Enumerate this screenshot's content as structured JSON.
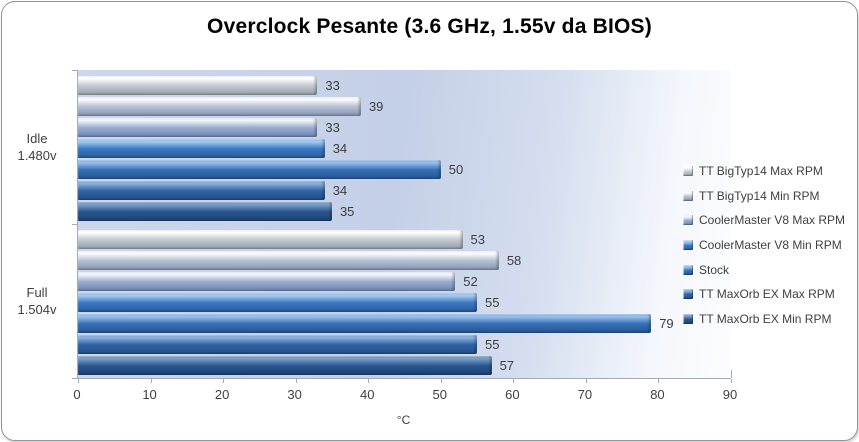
{
  "title": "Overclock Pesante (3.6 GHz, 1.55v da BIOS)",
  "chart_data": {
    "type": "bar",
    "orientation": "horizontal",
    "title": "Overclock Pesante (3.6 GHz, 1.55v da BIOS)",
    "xlabel": "°C",
    "xlim": [
      0,
      90
    ],
    "xticks": [
      0,
      10,
      20,
      30,
      40,
      50,
      60,
      70,
      80,
      90
    ],
    "grid": false,
    "data_labels": true,
    "legend_position": "right",
    "categories": [
      {
        "label_line1": "Idle",
        "label_line2": "1.480v"
      },
      {
        "label_line1": "Full",
        "label_line2": "1.504v"
      }
    ],
    "series": [
      {
        "name": "TT BigTyp14 Max RPM",
        "values": [
          33,
          53
        ],
        "colors": {
          "hi": "#ffffff",
          "light": "#eef0f3",
          "base": "#c3c8d0",
          "dark": "#979fab"
        }
      },
      {
        "name": "TT BigTyp14 Min RPM",
        "values": [
          39,
          58
        ],
        "colors": {
          "hi": "#fdfdfe",
          "light": "#e8ecf2",
          "base": "#b3bfd2",
          "dark": "#8495b1"
        }
      },
      {
        "name": "CoolerMaster V8 Max RPM",
        "values": [
          33,
          52
        ],
        "colors": {
          "hi": "#f2f6fb",
          "light": "#dce5f2",
          "base": "#97abce",
          "dark": "#6d87b3"
        }
      },
      {
        "name": "CoolerMaster V8 Min RPM",
        "values": [
          34,
          55
        ],
        "colors": {
          "hi": "#a8cbf0",
          "light": "#7aade6",
          "base": "#3a77c2",
          "dark": "#2a5c9e"
        }
      },
      {
        "name": "Stock",
        "values": [
          50,
          79
        ],
        "colors": {
          "hi": "#9cc2ec",
          "light": "#6fa4e0",
          "base": "#3670b6",
          "dark": "#275494"
        }
      },
      {
        "name": "TT MaxOrb EX Max RPM",
        "values": [
          34,
          55
        ],
        "colors": {
          "hi": "#8db2de",
          "light": "#6092cc",
          "base": "#2f62a4",
          "dark": "#224e85"
        }
      },
      {
        "name": "TT MaxOrb EX Min RPM",
        "values": [
          35,
          57
        ],
        "colors": {
          "hi": "#7da2c9",
          "light": "#5480b4",
          "base": "#28548e",
          "dark": "#1d4273"
        }
      }
    ],
    "style": {
      "plot_bg_left": "#cdd7eb",
      "plot_bg_mid": "#c4d0e8",
      "plot_bg_right": "#fdfdfe",
      "axis_color": "#a3abb6",
      "text_color": "#3f3f3f",
      "title_color": "#000000"
    }
  }
}
